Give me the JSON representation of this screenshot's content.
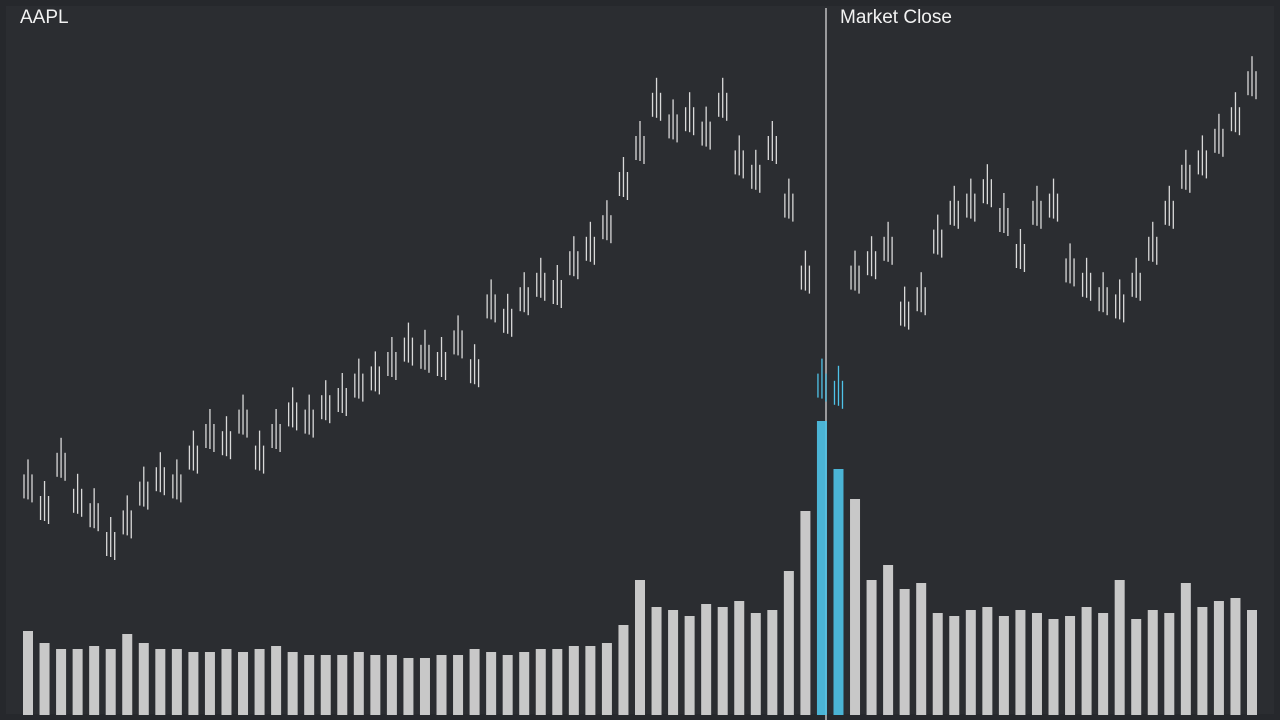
{
  "chart_data": {
    "type": "candlestick-volume",
    "title": "AAPL",
    "annotation": "Market Close",
    "color": "#d9d9d9",
    "highlight_color": "#4fc3e8",
    "ylim": [
      0,
      100
    ],
    "y2lim": [
      0,
      100
    ],
    "values": [
      33,
      30,
      36,
      31,
      29,
      25,
      28,
      32,
      34,
      33,
      37,
      40,
      39,
      42,
      37,
      40,
      43,
      42,
      44,
      45,
      47,
      48,
      50,
      52,
      51,
      50,
      53,
      49,
      58,
      56,
      59,
      61,
      60,
      64,
      66,
      69,
      75,
      80,
      86,
      83,
      84,
      82,
      86,
      78,
      76,
      80,
      72,
      62,
      47,
      46,
      62,
      64,
      66,
      57,
      59,
      67,
      71,
      72,
      74,
      70,
      65,
      71,
      72,
      63,
      61,
      59,
      58,
      61,
      66,
      71,
      76,
      78,
      81,
      84,
      89
    ],
    "volume": [
      28,
      24,
      22,
      22,
      23,
      22,
      27,
      24,
      22,
      22,
      21,
      21,
      22,
      21,
      22,
      23,
      21,
      20,
      20,
      20,
      21,
      20,
      20,
      19,
      19,
      20,
      20,
      22,
      21,
      20,
      21,
      22,
      22,
      23,
      23,
      24,
      30,
      45,
      36,
      35,
      33,
      37,
      36,
      38,
      34,
      35,
      48,
      68,
      98,
      82,
      72,
      45,
      50,
      42,
      44,
      34,
      33,
      35,
      36,
      33,
      35,
      34,
      32,
      33,
      36,
      34,
      45,
      32,
      35,
      34,
      44,
      36,
      38,
      39,
      35
    ]
  }
}
